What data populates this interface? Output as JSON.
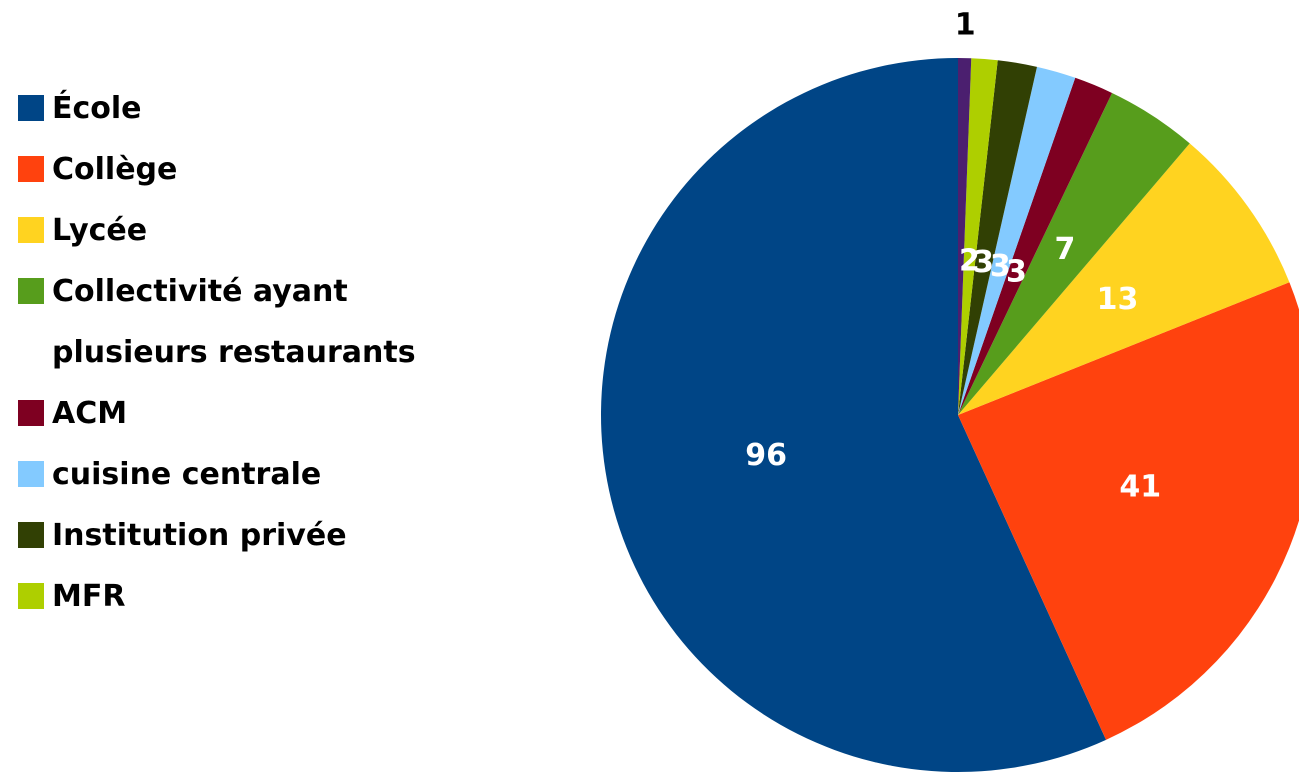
{
  "chart_data": {
    "type": "pie",
    "categories": [
      "École",
      "Collège",
      "Lycée",
      "Collectivité ayant plusieurs restaurants",
      "ACM",
      "cuisine centrale",
      "Institution privée",
      "MFR",
      null
    ],
    "values": [
      96,
      41,
      13,
      7,
      3,
      3,
      3,
      2,
      1
    ],
    "colors": [
      "#004586",
      "#ff420e",
      "#ffd320",
      "#579d1c",
      "#7e0021",
      "#83caff",
      "#314004",
      "#aecf00",
      "#4b1f6f"
    ],
    "legend": "left"
  }
}
